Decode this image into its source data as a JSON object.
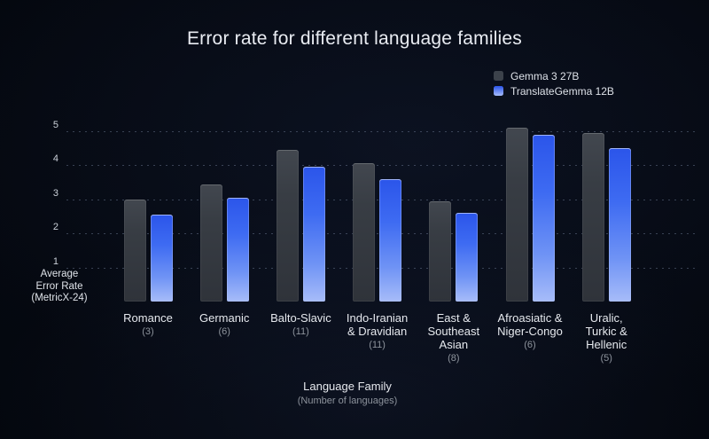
{
  "title": "Error rate for different language families",
  "legend": {
    "items": [
      {
        "label": "Gemma 3 27B",
        "color": "#3c424b"
      },
      {
        "label": "TranslateGemma 12B",
        "color": "#3e6df0"
      }
    ]
  },
  "y_axis": {
    "title": "Average\nError Rate\n(MetricX-24)",
    "ticks": [
      "1",
      "2",
      "3",
      "4",
      "5"
    ]
  },
  "x_axis": {
    "title": "Language Family",
    "subtitle": "(Number of languages)"
  },
  "colors": {
    "background": "#04070e",
    "title_text": "#e9ecf2",
    "bar_gray": "#3c424b",
    "bar_blue_top": "#2b55ea",
    "bar_blue_bottom": "#a7bcf9",
    "gridline": "#4a5568",
    "muted_text": "#8d939c"
  },
  "chart_data": {
    "type": "bar",
    "title": "Error rate for different language families",
    "xlabel": "Language Family (Number of languages)",
    "ylabel": "Average Error Rate (MetricX-24)",
    "ylim": [
      0,
      5.5
    ],
    "gridlines": [
      1,
      2,
      3,
      4,
      5
    ],
    "grid": "horizontal dotted",
    "legend_position": "top-right",
    "categories": [
      "Romance",
      "Germanic",
      "Balto-Slavic",
      "Indo-Iranian & Dravidian",
      "East & Southeast Asian",
      "Afroasiatic & Niger-Congo",
      "Uralic, Turkic & Hellenic"
    ],
    "category_label_lines": [
      "Romance",
      "Germanic",
      "Balto-Slavic",
      "Indo-Iranian\n& Dravidian",
      "East &\nSoutheast\nAsian",
      "Afroasiatic &\nNiger-Congo",
      "Uralic,\nTurkic &\nHellenic"
    ],
    "category_counts": [
      "(3)",
      "(6)",
      "(11)",
      "(11)",
      "(8)",
      "(6)",
      "(5)"
    ],
    "series": [
      {
        "name": "Gemma 3 27B",
        "color": "#3c424b",
        "values": [
          3.0,
          3.45,
          4.45,
          4.05,
          2.95,
          5.1,
          4.95
        ]
      },
      {
        "name": "TranslateGemma 12B",
        "color": "#3e6df0",
        "values": [
          2.55,
          3.05,
          3.95,
          3.6,
          2.6,
          4.9,
          4.5
        ]
      }
    ]
  }
}
